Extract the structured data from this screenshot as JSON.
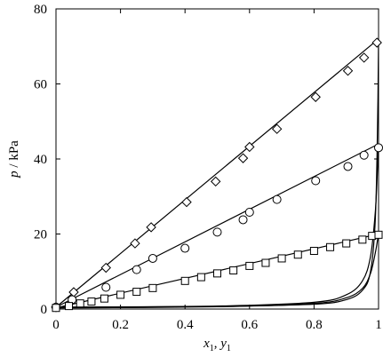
{
  "chart_data": {
    "type": "scatter",
    "xlabel": {
      "main": "x",
      "sub1": "1",
      "sep": ", ",
      "main2": "y",
      "sub2": "1"
    },
    "ylabel": {
      "italic": "p",
      "rest": " / kPa"
    },
    "xlim": [
      0,
      1
    ],
    "ylim": [
      0,
      80
    ],
    "xticks": [
      "0",
      "0.2",
      "0.4",
      "0.6",
      "0.8",
      "1"
    ],
    "yticks": [
      "0",
      "20",
      "40",
      "60",
      "80"
    ],
    "grid": false,
    "legend": "none",
    "series": [
      {
        "marker": "diamond",
        "bubble_x": [
          0.0,
          1.0
        ],
        "bubble_y": [
          0.5,
          72.0
        ],
        "points": [
          [
            0.0,
            0.5
          ],
          [
            0.055,
            4.5
          ],
          [
            0.155,
            11.0
          ],
          [
            0.245,
            17.5
          ],
          [
            0.295,
            21.8
          ],
          [
            0.405,
            28.5
          ],
          [
            0.495,
            34.0
          ],
          [
            0.58,
            40.2
          ],
          [
            0.6,
            43.2
          ],
          [
            0.685,
            48.0
          ],
          [
            0.805,
            56.5
          ],
          [
            0.905,
            63.5
          ],
          [
            0.955,
            67.0
          ],
          [
            0.995,
            71.0
          ]
        ],
        "bubble_x_curve": [
          [
            0.0,
            0.5
          ],
          [
            0.5,
            0.7
          ],
          [
            0.8,
            1.3
          ],
          [
            0.9,
            2.5
          ],
          [
            0.95,
            5.0
          ],
          [
            0.975,
            10.0
          ],
          [
            0.99,
            24.0
          ],
          [
            0.997,
            50.0
          ],
          [
            1.0,
            72.0
          ]
        ]
      },
      {
        "marker": "circle",
        "bubble_x": [
          0.0,
          1.0
        ],
        "bubble_y": [
          0.5,
          44.0
        ],
        "points": [
          [
            0.0,
            0.5
          ],
          [
            0.05,
            2.5
          ],
          [
            0.155,
            5.8
          ],
          [
            0.25,
            10.5
          ],
          [
            0.3,
            13.5
          ],
          [
            0.4,
            16.2
          ],
          [
            0.5,
            20.5
          ],
          [
            0.58,
            23.8
          ],
          [
            0.6,
            25.8
          ],
          [
            0.685,
            29.2
          ],
          [
            0.805,
            34.2
          ],
          [
            0.905,
            38.0
          ],
          [
            0.955,
            41.0
          ],
          [
            1.0,
            43.0
          ]
        ],
        "bubble_x_curve": [
          [
            0.0,
            0.5
          ],
          [
            0.5,
            0.8
          ],
          [
            0.8,
            1.8
          ],
          [
            0.9,
            3.8
          ],
          [
            0.95,
            7.5
          ],
          [
            0.975,
            14.0
          ],
          [
            0.99,
            26.0
          ],
          [
            0.997,
            38.0
          ],
          [
            1.0,
            44.0
          ]
        ]
      },
      {
        "marker": "square",
        "bubble_x": [
          0.0,
          1.0
        ],
        "bubble_y": [
          0.3,
          20.0
        ],
        "points": [
          [
            0.0,
            0.3
          ],
          [
            0.04,
            0.8
          ],
          [
            0.075,
            1.5
          ],
          [
            0.11,
            2.0
          ],
          [
            0.15,
            2.8
          ],
          [
            0.2,
            3.8
          ],
          [
            0.25,
            4.6
          ],
          [
            0.3,
            5.6
          ],
          [
            0.4,
            7.5
          ],
          [
            0.45,
            8.5
          ],
          [
            0.5,
            9.5
          ],
          [
            0.55,
            10.3
          ],
          [
            0.6,
            11.5
          ],
          [
            0.65,
            12.3
          ],
          [
            0.7,
            13.5
          ],
          [
            0.75,
            14.5
          ],
          [
            0.8,
            15.5
          ],
          [
            0.85,
            16.5
          ],
          [
            0.9,
            17.5
          ],
          [
            0.95,
            18.5
          ],
          [
            0.98,
            19.5
          ],
          [
            1.0,
            19.8
          ]
        ],
        "bubble_x_curve": [
          [
            0.0,
            0.3
          ],
          [
            0.5,
            0.6
          ],
          [
            0.8,
            1.5
          ],
          [
            0.9,
            3.0
          ],
          [
            0.95,
            5.5
          ],
          [
            0.975,
            9.5
          ],
          [
            0.99,
            15.0
          ],
          [
            0.997,
            18.5
          ],
          [
            1.0,
            20.0
          ]
        ]
      }
    ]
  }
}
